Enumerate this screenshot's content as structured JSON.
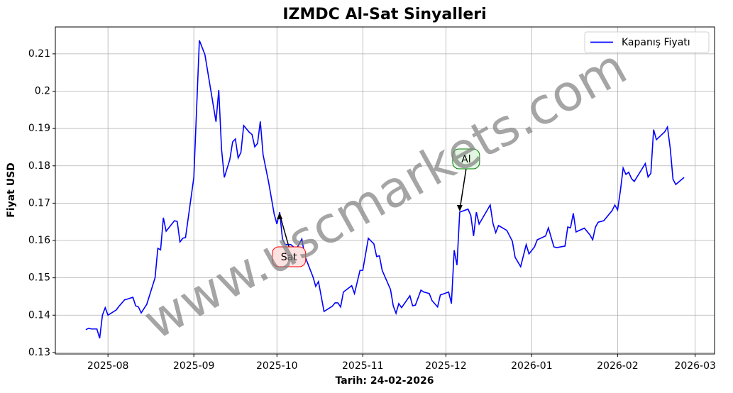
{
  "chart_data": {
    "type": "line",
    "title": "IZMDC Al-Sat Sinyalleri",
    "xlabel": "Tarih: 24-02-2026",
    "ylabel": "Fiyat USD",
    "watermark": "www.uscmarkets.com",
    "x": [
      -8,
      -7,
      -6,
      -4,
      -3,
      -2,
      -1,
      0,
      3,
      4,
      6,
      7,
      9,
      10,
      11,
      12,
      14,
      17,
      18,
      19,
      20,
      21,
      24,
      25,
      26,
      27,
      28,
      31,
      33,
      35,
      39,
      40,
      41,
      42,
      44,
      45,
      46,
      47,
      48,
      49,
      51,
      52,
      53,
      54,
      55,
      56,
      58,
      60,
      61,
      62,
      63,
      64,
      66,
      68,
      70,
      71,
      74,
      75,
      76,
      78,
      81,
      82,
      83,
      84,
      85,
      88,
      89,
      91,
      92,
      94,
      96,
      97,
      98,
      99,
      102,
      103,
      104,
      105,
      106,
      109,
      110,
      111,
      113,
      114,
      116,
      117,
      119,
      120,
      123,
      124,
      125,
      126,
      127,
      130,
      131,
      132,
      133,
      134,
      138,
      139,
      140,
      141,
      144,
      146,
      147,
      149,
      151,
      152,
      154,
      155,
      158,
      159,
      161,
      162,
      165,
      166,
      167,
      168,
      169,
      172,
      174,
      175,
      176,
      177,
      179,
      182,
      183,
      184,
      185,
      186,
      187,
      188,
      189,
      190,
      194,
      195,
      196,
      197,
      198,
      201,
      202,
      203,
      204,
      205,
      208
    ],
    "series": [
      {
        "name": "Kapanış Fiyatı",
        "color": "#0000ff",
        "values": [
          0.1361,
          0.1365,
          0.1363,
          0.1363,
          0.1338,
          0.14,
          0.142,
          0.14,
          0.1414,
          0.1424,
          0.1441,
          0.1443,
          0.1448,
          0.1425,
          0.1422,
          0.1406,
          0.1429,
          0.15,
          0.1579,
          0.1575,
          0.1661,
          0.1625,
          0.1653,
          0.1651,
          0.1596,
          0.1606,
          0.1608,
          0.1769,
          0.2136,
          0.2098,
          0.1918,
          0.2003,
          0.1845,
          0.1769,
          0.1817,
          0.1864,
          0.1872,
          0.1821,
          0.1836,
          0.1908,
          0.189,
          0.1884,
          0.1851,
          0.186,
          0.1919,
          0.183,
          0.1756,
          0.1671,
          0.1644,
          0.1676,
          0.1604,
          0.1589,
          0.1589,
          0.1577,
          0.1604,
          0.156,
          0.1503,
          0.1477,
          0.149,
          0.141,
          0.1424,
          0.1433,
          0.1433,
          0.1422,
          0.1462,
          0.1479,
          0.1458,
          0.152,
          0.152,
          0.1606,
          0.1591,
          0.1557,
          0.1559,
          0.152,
          0.1469,
          0.1425,
          0.1405,
          0.1431,
          0.142,
          0.1452,
          0.1425,
          0.1427,
          0.1467,
          0.1462,
          0.1458,
          0.1439,
          0.1422,
          0.1454,
          0.1462,
          0.1431,
          0.1574,
          0.1534,
          0.1676,
          0.1684,
          0.1667,
          0.1612,
          0.1676,
          0.1644,
          0.1695,
          0.1646,
          0.1621,
          0.164,
          0.1627,
          0.1598,
          0.1555,
          0.153,
          0.1589,
          0.1564,
          0.1583,
          0.1602,
          0.1612,
          0.1634,
          0.1583,
          0.1581,
          0.1585,
          0.1636,
          0.1634,
          0.1673,
          0.1623,
          0.1633,
          0.1615,
          0.1602,
          0.1636,
          0.1649,
          0.1653,
          0.168,
          0.1695,
          0.1682,
          0.1733,
          0.1794,
          0.1777,
          0.1783,
          0.1766,
          0.1758,
          0.1806,
          0.177,
          0.178,
          0.1897,
          0.187,
          0.1891,
          0.1904,
          0.1847,
          0.1764,
          0.175,
          0.1769
        ]
      }
    ],
    "annotations": [
      {
        "text": "Sat",
        "x": 62,
        "y": 0.1676,
        "color": "#ff0000",
        "fill": "#fde2e2"
      },
      {
        "text": "Al",
        "x": 127,
        "y": 0.1676,
        "color": "#008000",
        "fill": "#e2f5e2"
      }
    ],
    "xlim": [
      -19,
      219
    ],
    "xticks": [
      {
        "value": 0,
        "label": "2025-08"
      },
      {
        "value": 31,
        "label": "2025-09"
      },
      {
        "value": 61,
        "label": "2025-10"
      },
      {
        "value": 92,
        "label": "2025-11"
      },
      {
        "value": 122,
        "label": "2025-12"
      },
      {
        "value": 153,
        "label": "2026-01"
      },
      {
        "value": 184,
        "label": "2026-02"
      },
      {
        "value": 212,
        "label": "2026-03"
      }
    ],
    "ylim": [
      0.1296,
      0.2172
    ],
    "yticks": [
      0.13,
      0.14,
      0.15,
      0.16,
      0.17,
      0.18,
      0.19,
      0.2,
      0.21
    ],
    "grid": true,
    "legend": "upper right"
  }
}
